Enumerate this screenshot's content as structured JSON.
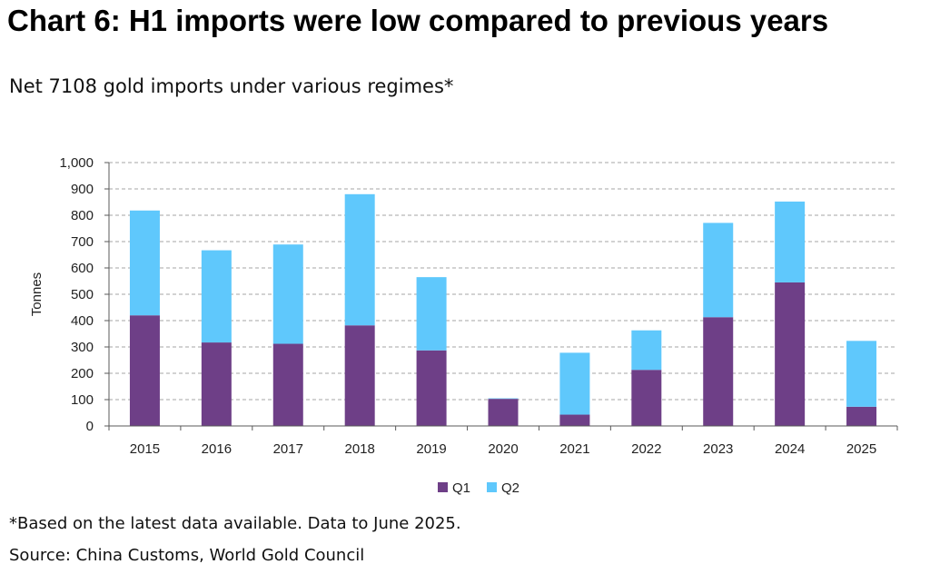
{
  "title": "Chart 6: H1 imports were low compared to previous years",
  "subtitle": "Net 7108 gold imports under various regimes*",
  "footnote": "*Based on the latest data available. Data to June 2025.",
  "source": "Source: China Customs, World Gold Council",
  "colors": {
    "q1": "#6e3f87",
    "q2": "#5fc8fc",
    "grid": "#a6a6a6",
    "axis": "#595959"
  },
  "chart_data": {
    "type": "bar",
    "stacked": true,
    "categories": [
      "2015",
      "2016",
      "2017",
      "2018",
      "2019",
      "2020",
      "2021",
      "2022",
      "2023",
      "2024",
      "2025"
    ],
    "series": [
      {
        "name": "Q1",
        "values": [
          420,
          317,
          312,
          382,
          287,
          103,
          43,
          213,
          413,
          545,
          73
        ]
      },
      {
        "name": "Q2",
        "values": [
          398,
          350,
          377,
          498,
          278,
          2,
          235,
          150,
          358,
          307,
          250
        ]
      }
    ],
    "ylabel": "Tonnes",
    "ylim": [
      0,
      1000
    ],
    "yticks": [
      0,
      100,
      200,
      300,
      400,
      500,
      600,
      700,
      800,
      900,
      1000
    ],
    "ytick_labels": [
      "0",
      "100",
      "200",
      "300",
      "400",
      "500",
      "600",
      "700",
      "800",
      "900",
      "1,000"
    ],
    "grid": true,
    "legend": "bottom-center"
  }
}
